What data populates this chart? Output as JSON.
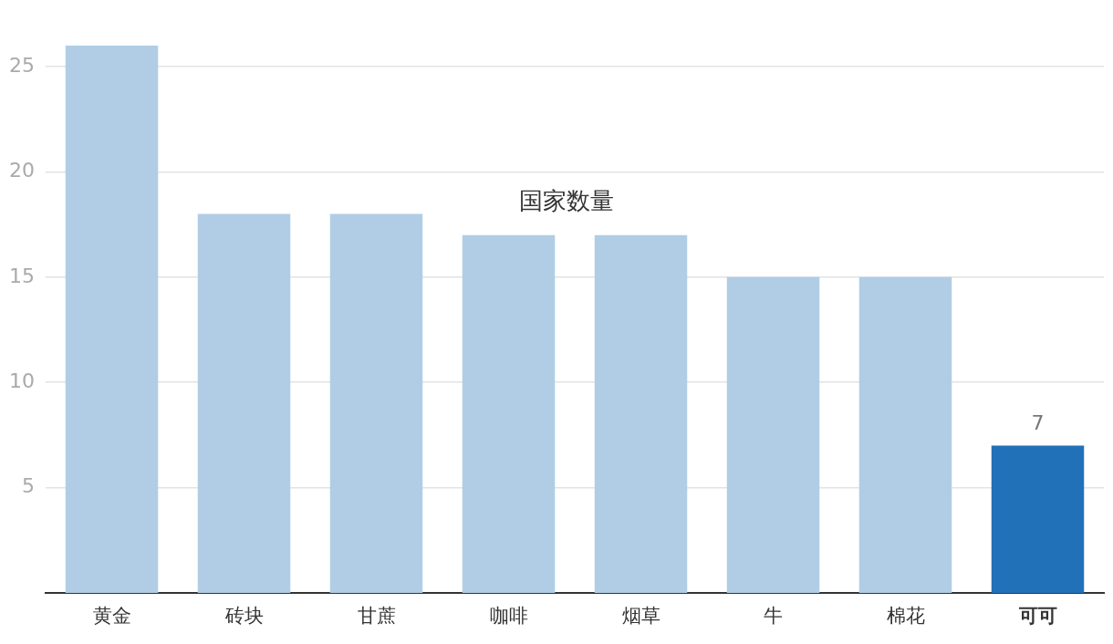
{
  "chart_data": {
    "type": "bar",
    "title": "国家数量",
    "categories": [
      "黄金",
      "砖块",
      "甘蔗",
      "咖啡",
      "烟草",
      "牛",
      "棉花",
      "可可"
    ],
    "values": [
      26,
      18,
      18,
      17,
      17,
      15,
      15,
      7
    ],
    "colors": [
      "#b0cde5",
      "#b0cde5",
      "#b0cde5",
      "#b0cde5",
      "#b0cde5",
      "#b0cde5",
      "#b0cde5",
      "#2171b8"
    ],
    "value_labels": [
      null,
      null,
      null,
      null,
      null,
      null,
      null,
      "7"
    ],
    "ylim": [
      0,
      26
    ],
    "yticks": [
      5,
      10,
      15,
      20,
      25
    ],
    "grid": "y"
  }
}
